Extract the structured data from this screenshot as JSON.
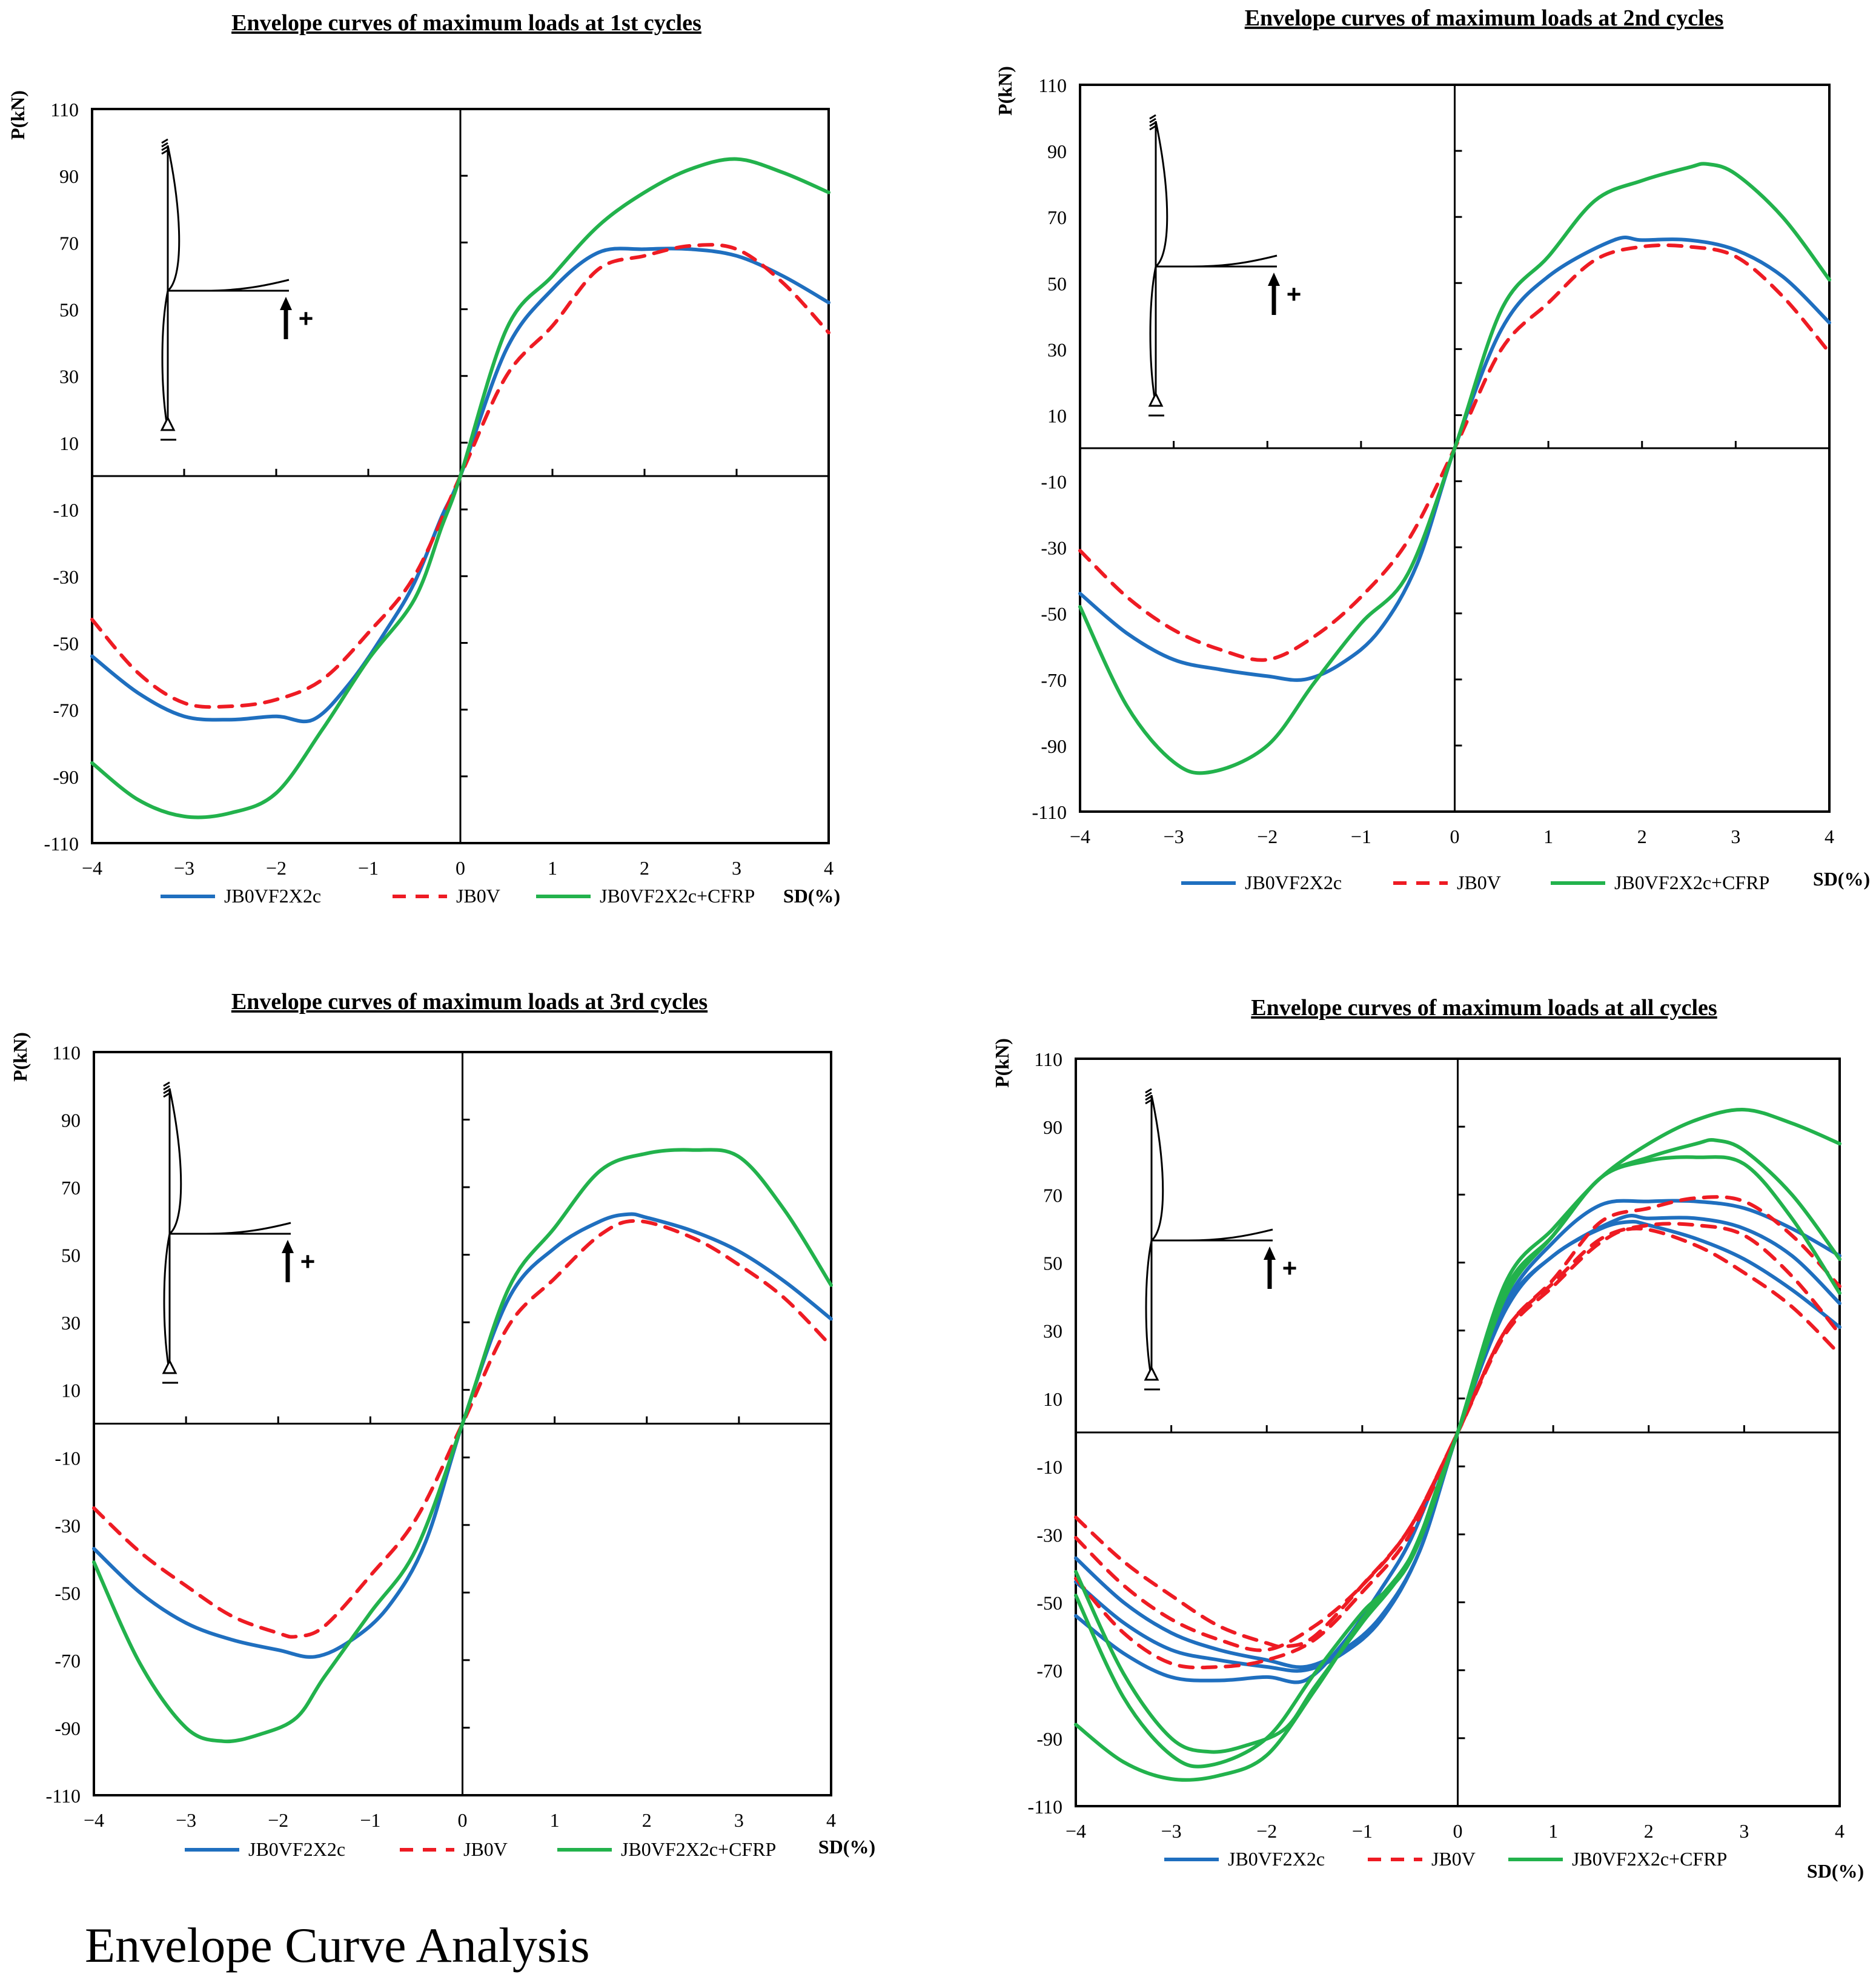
{
  "caption": "Envelope Curve Analysis",
  "legend_labels": [
    "JB0VF2X2c",
    "JB0V",
    "JB0VF2X2c+CFRP"
  ],
  "axis_labels": {
    "y": "P(kN)",
    "x": "SD(%)"
  },
  "colors": {
    "blue": "#1f6fbf",
    "red": "#ee1b23",
    "green": "#22b24c",
    "axis": "#000000"
  },
  "chart_data": [
    {
      "type": "line",
      "title": "Envelope curves of maximum loads at 1st cycles",
      "xlabel": "SD(%)",
      "ylabel": "P(kN)",
      "xlim": [
        -4,
        4
      ],
      "ylim": [
        -110,
        110
      ],
      "xticks": [
        -4,
        -3,
        -2,
        -1,
        0,
        1,
        2,
        3,
        4
      ],
      "yticks": [
        110,
        90,
        70,
        50,
        30,
        10,
        -10,
        -30,
        -50,
        -70,
        -90,
        -110
      ],
      "legend_position": "bottom",
      "series": [
        {
          "name": "JB0VF2X2c",
          "color": "blue",
          "dash": false,
          "x": [
            -4,
            -3.5,
            -3,
            -2.5,
            -2,
            -1.6,
            -1.2,
            -0.8,
            -0.5,
            -0.2,
            0,
            0.5,
            1,
            1.5,
            2,
            2.5,
            3,
            3.5,
            4
          ],
          "y": [
            -54,
            -65,
            -72,
            -73,
            -72,
            -73,
            -62,
            -46,
            -32,
            -12,
            0,
            38,
            56,
            67,
            68,
            68,
            66,
            60,
            52
          ]
        },
        {
          "name": "JB0V",
          "color": "red",
          "dash": true,
          "x": [
            -4,
            -3.5,
            -3,
            -2.5,
            -2,
            -1.5,
            -1,
            -0.5,
            0,
            0.5,
            1,
            1.5,
            2,
            2.5,
            3,
            3.5,
            4
          ],
          "y": [
            -43,
            -59,
            -68,
            -69,
            -67,
            -61,
            -47,
            -30,
            0,
            30,
            45,
            62,
            66,
            69,
            68,
            58,
            43
          ]
        },
        {
          "name": "JB0VF2X2c+CFRP",
          "color": "green",
          "dash": false,
          "x": [
            -4,
            -3.5,
            -3,
            -2.5,
            -2,
            -1.5,
            -1,
            -0.5,
            -0.2,
            0,
            0.5,
            1,
            1.5,
            2,
            2.5,
            3,
            3.5,
            4
          ],
          "y": [
            -86,
            -97,
            -102,
            -101,
            -95,
            -76,
            -55,
            -37,
            -15,
            0,
            44,
            60,
            75,
            85,
            92,
            95,
            91,
            85
          ]
        }
      ]
    },
    {
      "type": "line",
      "title": "Envelope curves of maximum loads at 2nd cycles",
      "xlabel": "SD(%)",
      "ylabel": "P(kN)",
      "xlim": [
        -4,
        4
      ],
      "ylim": [
        -110,
        110
      ],
      "xticks": [
        -4,
        -3,
        -2,
        -1,
        0,
        1,
        2,
        3,
        4
      ],
      "yticks": [
        110,
        90,
        70,
        50,
        30,
        10,
        -10,
        -30,
        -50,
        -70,
        -90,
        -110
      ],
      "legend_position": "bottom",
      "series": [
        {
          "name": "JB0VF2X2c",
          "color": "blue",
          "dash": false,
          "x": [
            -4,
            -3.5,
            -3,
            -2.5,
            -2,
            -1.6,
            -1.2,
            -0.8,
            -0.4,
            0,
            0.5,
            1,
            1.7,
            2,
            2.5,
            3,
            3.5,
            4
          ],
          "y": [
            -44,
            -56,
            -64,
            -67,
            -69,
            -70,
            -65,
            -55,
            -35,
            0,
            36,
            52,
            63,
            63,
            63,
            60,
            52,
            38
          ]
        },
        {
          "name": "JB0V",
          "color": "red",
          "dash": true,
          "x": [
            -4,
            -3.5,
            -3,
            -2.5,
            -2,
            -1.5,
            -1,
            -0.5,
            0,
            0.5,
            1,
            1.5,
            2,
            2.5,
            3,
            3.5,
            4
          ],
          "y": [
            -31,
            -45,
            -55,
            -61,
            -64,
            -57,
            -45,
            -28,
            0,
            30,
            44,
            57,
            61,
            61,
            58,
            46,
            29
          ]
        },
        {
          "name": "JB0VF2X2c+CFRP",
          "color": "green",
          "dash": false,
          "x": [
            -4,
            -3.5,
            -3,
            -2.6,
            -2,
            -1.5,
            -1,
            -0.5,
            0,
            0.5,
            1,
            1.5,
            2,
            2.5,
            2.7,
            3,
            3.5,
            4
          ],
          "y": [
            -48,
            -78,
            -95,
            -98,
            -90,
            -71,
            -53,
            -38,
            0,
            42,
            58,
            75,
            81,
            85,
            86,
            83,
            70,
            51
          ]
        }
      ]
    },
    {
      "type": "line",
      "title": "Envelope curves of maximum loads at 3rd cycles",
      "xlabel": "SD(%)",
      "ylabel": "P(kN)",
      "xlim": [
        -4,
        4
      ],
      "ylim": [
        -110,
        110
      ],
      "xticks": [
        -4,
        -3,
        -2,
        -1,
        0,
        1,
        2,
        3,
        4
      ],
      "yticks": [
        110,
        90,
        70,
        50,
        30,
        10,
        -10,
        -30,
        -50,
        -70,
        -90,
        -110
      ],
      "legend_position": "bottom",
      "series": [
        {
          "name": "JB0VF2X2c",
          "color": "blue",
          "dash": false,
          "x": [
            -4,
            -3.5,
            -3,
            -2.5,
            -2,
            -1.6,
            -1.2,
            -0.8,
            -0.4,
            0,
            0.5,
            1,
            1.5,
            1.8,
            2,
            2.5,
            3,
            3.5,
            4
          ],
          "y": [
            -37,
            -50,
            -59,
            -64,
            -67,
            -69,
            -64,
            -54,
            -35,
            0,
            37,
            52,
            60,
            62,
            61,
            57,
            51,
            42,
            31
          ]
        },
        {
          "name": "JB0V",
          "color": "red",
          "dash": true,
          "x": [
            -4,
            -3.5,
            -3,
            -2.5,
            -2,
            -1.8,
            -1.5,
            -1,
            -0.5,
            0,
            0.5,
            1,
            1.5,
            1.9,
            2.5,
            3,
            3.5,
            4
          ],
          "y": [
            -25,
            -38,
            -48,
            -57,
            -62,
            -63,
            -60,
            -45,
            -28,
            0,
            29,
            43,
            56,
            60,
            55,
            47,
            37,
            23
          ]
        },
        {
          "name": "JB0VF2X2c+CFRP",
          "color": "green",
          "dash": false,
          "x": [
            -4,
            -3.5,
            -3,
            -2.6,
            -2.2,
            -1.8,
            -1.5,
            -1,
            -0.5,
            0,
            0.5,
            1,
            1.5,
            2,
            2.5,
            3,
            3.5,
            4
          ],
          "y": [
            -41,
            -71,
            -90,
            -94,
            -92,
            -87,
            -75,
            -56,
            -37,
            0,
            40,
            58,
            75,
            80,
            81,
            79,
            63,
            41
          ]
        }
      ]
    },
    {
      "type": "line",
      "title": "Envelope curves of maximum loads at all cycles",
      "xlabel": "SD(%)",
      "ylabel": "P(kN)",
      "xlim": [
        -4,
        4
      ],
      "ylim": [
        -110,
        110
      ],
      "xticks": [
        -4,
        -3,
        -2,
        -1,
        0,
        1,
        2,
        3,
        4
      ],
      "yticks": [
        110,
        90,
        70,
        50,
        30,
        10,
        -10,
        -30,
        -50,
        -70,
        -90,
        -110
      ],
      "legend_position": "bottom",
      "series": [
        {
          "name": "JB0VF2X2c",
          "color": "blue",
          "dash": false,
          "x": [
            -4,
            -3.5,
            -3,
            -2.5,
            -2,
            -1.6,
            -1.2,
            -0.8,
            -0.5,
            -0.2,
            0,
            0.5,
            1,
            1.5,
            2,
            2.5,
            3,
            3.5,
            4
          ],
          "y": [
            -54,
            -65,
            -72,
            -73,
            -72,
            -73,
            -62,
            -46,
            -32,
            -12,
            0,
            38,
            56,
            67,
            68,
            68,
            66,
            60,
            52
          ]
        },
        {
          "name": "JB0VF2X2c",
          "color": "blue",
          "dash": false,
          "x": [
            -4,
            -3.5,
            -3,
            -2.5,
            -2,
            -1.6,
            -1.2,
            -0.8,
            -0.4,
            0,
            0.5,
            1,
            1.7,
            2,
            2.5,
            3,
            3.5,
            4
          ],
          "y": [
            -44,
            -56,
            -64,
            -67,
            -69,
            -70,
            -65,
            -55,
            -35,
            0,
            36,
            52,
            63,
            63,
            63,
            60,
            52,
            38
          ]
        },
        {
          "name": "JB0VF2X2c",
          "color": "blue",
          "dash": false,
          "x": [
            -4,
            -3.5,
            -3,
            -2.5,
            -2,
            -1.6,
            -1.2,
            -0.8,
            -0.4,
            0,
            0.5,
            1,
            1.5,
            1.8,
            2,
            2.5,
            3,
            3.5,
            4
          ],
          "y": [
            -37,
            -50,
            -59,
            -64,
            -67,
            -69,
            -64,
            -54,
            -35,
            0,
            37,
            52,
            60,
            62,
            61,
            57,
            51,
            42,
            31
          ]
        },
        {
          "name": "JB0V",
          "color": "red",
          "dash": true,
          "x": [
            -4,
            -3.5,
            -3,
            -2.5,
            -2,
            -1.5,
            -1,
            -0.5,
            0,
            0.5,
            1,
            1.5,
            2,
            2.5,
            3,
            3.5,
            4
          ],
          "y": [
            -43,
            -59,
            -68,
            -69,
            -67,
            -61,
            -47,
            -30,
            0,
            30,
            45,
            62,
            66,
            69,
            68,
            58,
            43
          ]
        },
        {
          "name": "JB0V",
          "color": "red",
          "dash": true,
          "x": [
            -4,
            -3.5,
            -3,
            -2.5,
            -2,
            -1.5,
            -1,
            -0.5,
            0,
            0.5,
            1,
            1.5,
            2,
            2.5,
            3,
            3.5,
            4
          ],
          "y": [
            -31,
            -45,
            -55,
            -61,
            -64,
            -57,
            -45,
            -28,
            0,
            30,
            44,
            57,
            61,
            61,
            58,
            46,
            29
          ]
        },
        {
          "name": "JB0V",
          "color": "red",
          "dash": true,
          "x": [
            -4,
            -3.5,
            -3,
            -2.5,
            -2,
            -1.8,
            -1.5,
            -1,
            -0.5,
            0,
            0.5,
            1,
            1.5,
            1.9,
            2.5,
            3,
            3.5,
            4
          ],
          "y": [
            -25,
            -38,
            -48,
            -57,
            -62,
            -63,
            -60,
            -45,
            -28,
            0,
            29,
            43,
            56,
            60,
            55,
            47,
            37,
            23
          ]
        },
        {
          "name": "JB0VF2X2c+CFRP",
          "color": "green",
          "dash": false,
          "x": [
            -4,
            -3.5,
            -3,
            -2.5,
            -2,
            -1.5,
            -1,
            -0.5,
            -0.2,
            0,
            0.5,
            1,
            1.5,
            2,
            2.5,
            3,
            3.5,
            4
          ],
          "y": [
            -86,
            -97,
            -102,
            -101,
            -95,
            -76,
            -55,
            -37,
            -15,
            0,
            44,
            60,
            75,
            85,
            92,
            95,
            91,
            85
          ]
        },
        {
          "name": "JB0VF2X2c+CFRP",
          "color": "green",
          "dash": false,
          "x": [
            -4,
            -3.5,
            -3,
            -2.6,
            -2,
            -1.5,
            -1,
            -0.5,
            0,
            0.5,
            1,
            1.5,
            2,
            2.5,
            2.7,
            3,
            3.5,
            4
          ],
          "y": [
            -48,
            -78,
            -95,
            -98,
            -90,
            -71,
            -53,
            -38,
            0,
            42,
            58,
            75,
            81,
            85,
            86,
            83,
            70,
            51
          ]
        },
        {
          "name": "JB0VF2X2c+CFRP",
          "color": "green",
          "dash": false,
          "x": [
            -4,
            -3.5,
            -3,
            -2.6,
            -2.2,
            -1.8,
            -1.5,
            -1,
            -0.5,
            0,
            0.5,
            1,
            1.5,
            2,
            2.5,
            3,
            3.5,
            4
          ],
          "y": [
            -41,
            -71,
            -90,
            -94,
            -92,
            -87,
            -75,
            -56,
            -37,
            0,
            40,
            58,
            75,
            80,
            81,
            79,
            63,
            41
          ]
        }
      ]
    }
  ]
}
